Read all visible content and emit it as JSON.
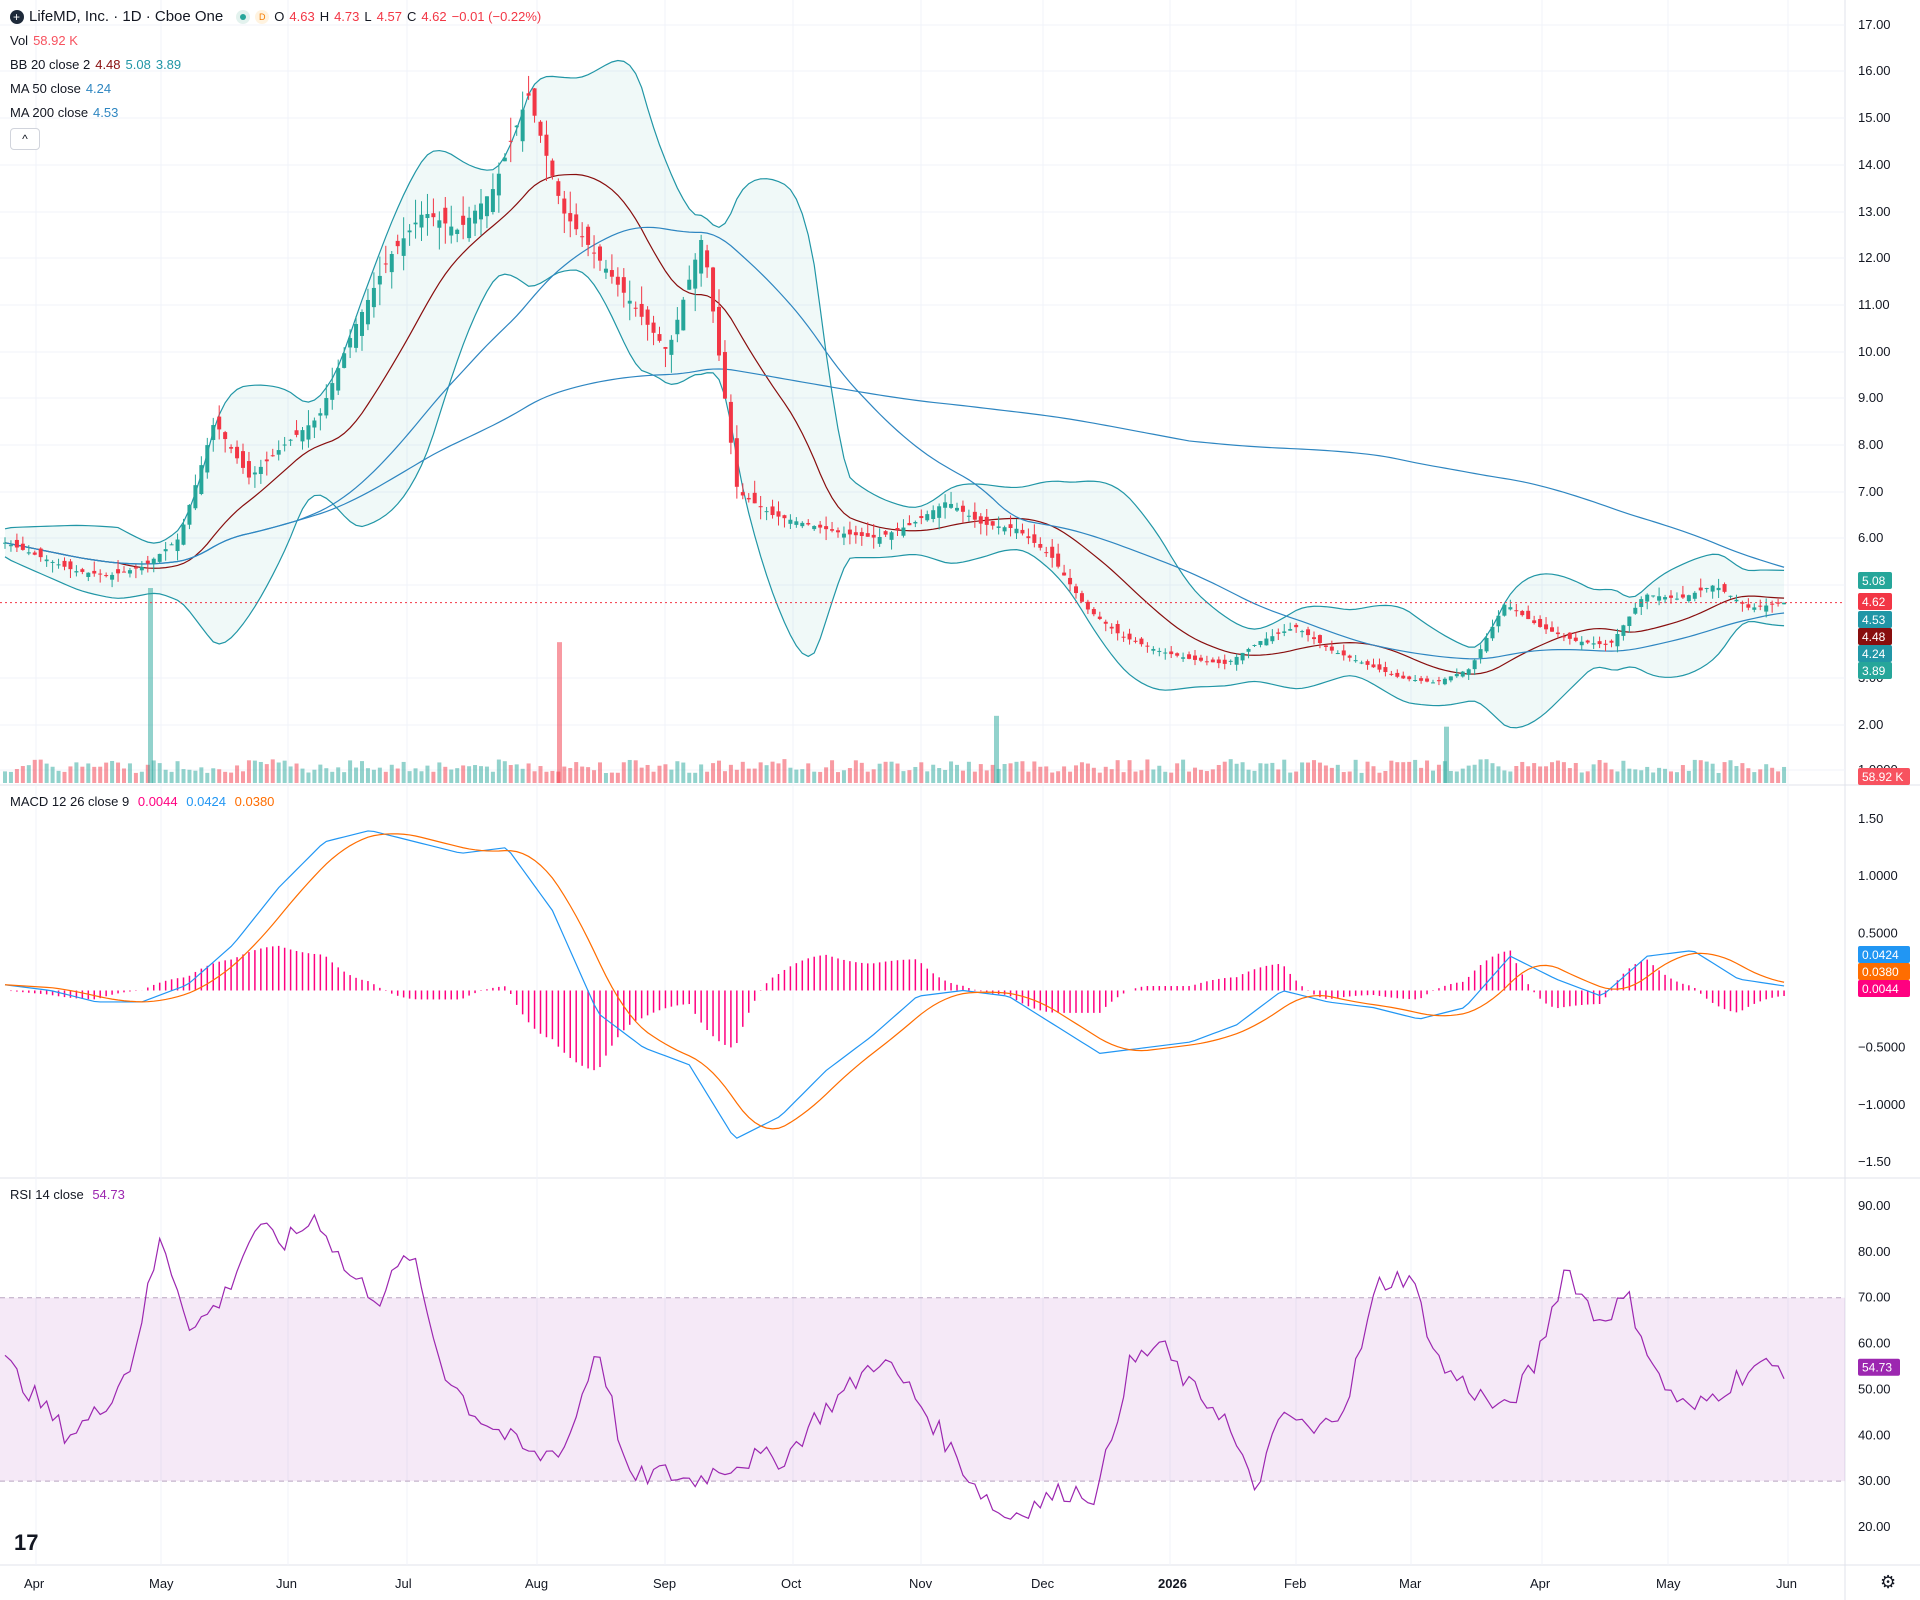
{
  "header": {
    "symbol": "LifeMD, Inc. · 1D · Cboe One",
    "o_label": "O",
    "o": "4.63",
    "h_label": "H",
    "h": "4.73",
    "l_label": "L",
    "l": "4.57",
    "c_label": "C",
    "c": "4.62",
    "change": "−0.01 (−0.22%)",
    "d_badge": "D"
  },
  "legend": {
    "vol_label": "Vol",
    "vol": "58.92 K",
    "bb_label": "BB 20 close 2",
    "bb_mid": "4.48",
    "bb_up": "5.08",
    "bb_low": "3.89",
    "ma50_label": "MA 50 close",
    "ma50": "4.24",
    "ma200_label": "MA 200 close",
    "ma200": "4.53",
    "collapse": "^",
    "macd_label": "MACD 12 26 close 9",
    "macd_hist": "0.0044",
    "macd": "0.0424",
    "macd_signal": "0.0380",
    "rsi_label": "RSI 14 close",
    "rsi": "54.73"
  },
  "price_axis": [
    "17.00",
    "16.00",
    "15.00",
    "14.00",
    "13.00",
    "12.00",
    "11.00",
    "10.00",
    "9.00",
    "8.00",
    "7.00",
    "6.00",
    "5.00",
    "3.00",
    "2.00",
    "1.0000"
  ],
  "price_tags": [
    {
      "text": "5.08",
      "color": "#26a69a"
    },
    {
      "text": "4.62",
      "color": "#f23645"
    },
    {
      "text": "4.53",
      "color": "#2196a6"
    },
    {
      "text": "4.48",
      "color": "#880e0e"
    },
    {
      "text": "4.24",
      "color": "#2196a6"
    },
    {
      "text": "3.89",
      "color": "#26a69a"
    },
    {
      "text": "58.92 K",
      "color": "#f7525f"
    }
  ],
  "macd_axis": [
    "1.50",
    "1.0000",
    "0.5000",
    "−0.5000",
    "−1.0000",
    "−1.50"
  ],
  "macd_tags": [
    {
      "text": "0.0424",
      "color": "#2196f3"
    },
    {
      "text": "0.0380",
      "color": "#ff6d00"
    },
    {
      "text": "0.0044",
      "color": "#ff0080"
    }
  ],
  "rsi_axis": [
    "90.00",
    "80.00",
    "70.00",
    "60.00",
    "50.00",
    "40.00",
    "30.00",
    "20.00"
  ],
  "rsi_tag": {
    "text": "54.73",
    "color": "#9c27b0"
  },
  "x_axis": [
    "Apr",
    "May",
    "Jun",
    "Jul",
    "Aug",
    "Sep",
    "Oct",
    "Nov",
    "Dec",
    "2026",
    "Feb",
    "Mar",
    "Apr",
    "May",
    "Jun"
  ],
  "colors": {
    "up": "#26a69a",
    "down": "#f23645",
    "bb": "#26a69a",
    "bb_mid": "#880e0e",
    "ma": "#2e86c1",
    "macd": "#2196f3",
    "signal": "#ff6d00",
    "hist": "#ff0080",
    "rsi": "#9c27b0"
  },
  "tv_logo": "17",
  "settings_icon": "gear-icon",
  "chart_data": {
    "type": "candlestick",
    "price_ylim": [
      1,
      17.3
    ],
    "price_path": [
      [
        "Apr",
        5.9
      ],
      [
        "Apr",
        5.6
      ],
      [
        "Apr",
        5.3
      ],
      [
        "Apr",
        5.2
      ],
      [
        "Apr",
        5.4
      ],
      [
        "May",
        6.0
      ],
      [
        "May",
        8.5
      ],
      [
        "May",
        7.3
      ],
      [
        "May",
        8.0
      ],
      [
        "May",
        8.6
      ],
      [
        "Jun",
        10.5
      ],
      [
        "Jun",
        12.0
      ],
      [
        "Jun",
        13.0
      ],
      [
        "Jun",
        12.6
      ],
      [
        "Jun",
        13.5
      ],
      [
        "Jul",
        15.5
      ],
      [
        "Jul",
        13.0
      ],
      [
        "Jul",
        12.0
      ],
      [
        "Jul",
        11.0
      ],
      [
        "Jul",
        10.0
      ],
      [
        "Aug",
        12.5
      ],
      [
        "Aug",
        7.0
      ],
      [
        "Aug",
        6.5
      ],
      [
        "Aug",
        6.3
      ],
      [
        "Sep",
        6.1
      ],
      [
        "Sep",
        6.0
      ],
      [
        "Sep",
        6.3
      ],
      [
        "Oct",
        6.8
      ],
      [
        "Oct",
        6.3
      ],
      [
        "Oct",
        6.2
      ],
      [
        "Oct",
        5.6
      ],
      [
        "Nov",
        4.5
      ],
      [
        "Nov",
        3.9
      ],
      [
        "Nov",
        3.6
      ],
      [
        "Dec",
        3.4
      ],
      [
        "Dec",
        3.3
      ],
      [
        "Dec",
        3.8
      ],
      [
        "2026",
        4.1
      ],
      [
        "2026",
        3.6
      ],
      [
        "Feb",
        3.3
      ],
      [
        "Feb",
        3.0
      ],
      [
        "Feb",
        2.9
      ],
      [
        "Mar",
        3.2
      ],
      [
        "Mar",
        4.6
      ],
      [
        "Mar",
        4.1
      ],
      [
        "Apr",
        3.8
      ],
      [
        "Apr",
        3.7
      ],
      [
        "Apr",
        4.8
      ],
      [
        "May",
        4.7
      ],
      [
        "May",
        5.0
      ],
      [
        "May",
        4.5
      ],
      [
        "Jun",
        4.62
      ]
    ],
    "volume_spikes_k": [
      {
        "month": "May",
        "value": 1800
      },
      {
        "month": "Aug",
        "value": 1300
      },
      {
        "month": "Nov",
        "value": 620
      },
      {
        "month": "Mar",
        "value": 520
      }
    ],
    "macd_ylim": [
      -1.55,
      1.6
    ],
    "macd_path": [
      0.05,
      0.0,
      -0.1,
      -0.1,
      0.05,
      0.4,
      0.9,
      1.3,
      1.4,
      1.3,
      1.2,
      1.25,
      0.7,
      -0.2,
      -0.5,
      -0.65,
      -1.3,
      -1.1,
      -0.7,
      -0.4,
      -0.05,
      0.0,
      -0.05,
      -0.3,
      -0.55,
      -0.5,
      -0.45,
      -0.3,
      0.0,
      -0.1,
      -0.15,
      -0.25,
      -0.15,
      0.3,
      0.1,
      -0.05,
      0.3,
      0.35,
      0.1,
      0.04
    ],
    "rsi_ylim": [
      15,
      92
    ],
    "rsi_path": [
      56,
      48,
      40,
      45,
      55,
      83,
      63,
      70,
      85,
      82,
      88,
      75,
      70,
      80,
      55,
      45,
      40,
      35,
      38,
      60,
      30,
      32,
      30,
      33,
      35,
      35,
      44,
      50,
      57,
      50,
      40,
      30,
      22,
      25,
      28,
      27,
      55,
      60,
      50,
      45,
      28,
      45,
      40,
      48,
      73,
      75,
      55,
      50,
      45,
      55,
      77,
      65,
      70,
      52,
      45,
      50,
      55,
      54.73
    ],
    "bb_ylim_note": "BB 20 close 2, MA 50, MA 200 overlays on price"
  }
}
